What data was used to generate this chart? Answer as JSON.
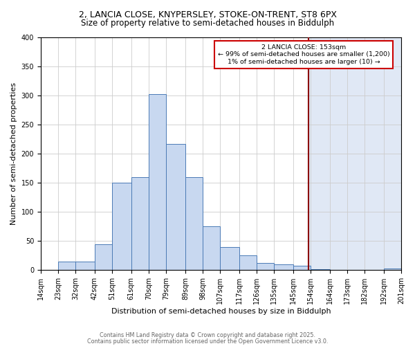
{
  "title": "2, LANCIA CLOSE, KNYPERSLEY, STOKE-ON-TRENT, ST8 6PX",
  "subtitle": "Size of property relative to semi-detached houses in Biddulph",
  "xlabel": "Distribution of semi-detached houses by size in Biddulph",
  "ylabel": "Number of semi-detached properties",
  "bin_labels": [
    "14sqm",
    "23sqm",
    "32sqm",
    "42sqm",
    "51sqm",
    "61sqm",
    "70sqm",
    "79sqm",
    "89sqm",
    "98sqm",
    "107sqm",
    "117sqm",
    "126sqm",
    "135sqm",
    "145sqm",
    "154sqm",
    "164sqm",
    "173sqm",
    "182sqm",
    "192sqm",
    "201sqm"
  ],
  "bin_edges": [
    14,
    23,
    32,
    42,
    51,
    61,
    70,
    79,
    89,
    98,
    107,
    117,
    126,
    135,
    145,
    154,
    164,
    173,
    182,
    192,
    201
  ],
  "bar_heights": [
    0,
    15,
    15,
    45,
    150,
    160,
    302,
    217,
    160,
    76,
    40,
    25,
    13,
    10,
    8,
    2,
    0,
    0,
    0,
    3
  ],
  "bar_color": "#c8d8f0",
  "bar_edge_color": "#4a7ab5",
  "vline_x": 153,
  "vline_color": "#8b0000",
  "annotation_title": "2 LANCIA CLOSE: 153sqm",
  "annotation_line1": "← 99% of semi-detached houses are smaller (1,200)",
  "annotation_line2": "1% of semi-detached houses are larger (10) →",
  "annotation_box_color": "#ffffff",
  "annotation_box_edge": "#cc0000",
  "ylim": [
    0,
    400
  ],
  "yticks": [
    0,
    50,
    100,
    150,
    200,
    250,
    300,
    350,
    400
  ],
  "bg_left_color": "#ffffff",
  "bg_right_color": "#e0e8f5",
  "title_fontsize": 9,
  "subtitle_fontsize": 8.5,
  "axis_label_fontsize": 8,
  "tick_fontsize": 7,
  "footer1": "Contains HM Land Registry data © Crown copyright and database right 2025.",
  "footer2": "Contains public sector information licensed under the Open Government Licence v3.0."
}
